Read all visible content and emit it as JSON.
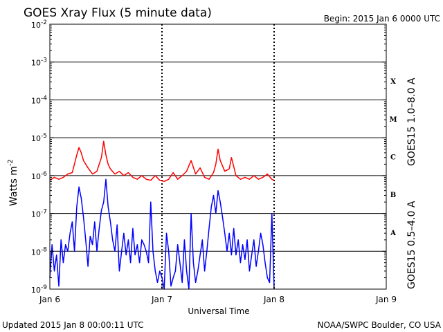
{
  "chart_data": {
    "type": "line",
    "title": "GOES Xray Flux (5 minute data)",
    "begin_label": "Begin:  2015 Jan 6 0000 UTC",
    "updated_label": "Updated 2015 Jan  8 00:00:11 UTC",
    "source_label": "NOAA/SWPC Boulder, CO USA",
    "xlabel": "Universal Time",
    "ylabel_base": "Watts m",
    "ylabel_exp": "-2",
    "yscale": "log",
    "ylim": [
      1e-09,
      0.01
    ],
    "xlim": [
      "Jan 6",
      "Jan 9"
    ],
    "grid": true,
    "x_ticks": [
      {
        "day": 0,
        "label": "Jan 6"
      },
      {
        "day": 1,
        "label": "Jan 7"
      },
      {
        "day": 2,
        "label": "Jan 8"
      },
      {
        "day": 3,
        "label": "Jan 9"
      }
    ],
    "y_ticks": [
      {
        "exp": -2,
        "base": "10",
        "sup": "-2"
      },
      {
        "exp": -3,
        "base": "10",
        "sup": "-3"
      },
      {
        "exp": -4,
        "base": "10",
        "sup": "-4"
      },
      {
        "exp": -5,
        "base": "10",
        "sup": "-5"
      },
      {
        "exp": -6,
        "base": "10",
        "sup": "-6"
      },
      {
        "exp": -7,
        "base": "10",
        "sup": "-7"
      },
      {
        "exp": -8,
        "base": "10",
        "sup": "-8"
      },
      {
        "exp": -9,
        "base": "10",
        "sup": "-9"
      }
    ],
    "flare_classes": [
      {
        "label": "X",
        "exp": -3.5
      },
      {
        "label": "M",
        "exp": -4.5
      },
      {
        "label": "C",
        "exp": -5.5
      },
      {
        "label": "B",
        "exp": -6.5
      },
      {
        "label": "A",
        "exp": -7.5
      }
    ],
    "series": [
      {
        "name": "GOES15 1.0–8.0 A",
        "color": "#ff0000",
        "x": [
          0,
          0.04,
          0.08,
          0.12,
          0.16,
          0.2,
          0.24,
          0.26,
          0.28,
          0.3,
          0.34,
          0.38,
          0.42,
          0.44,
          0.46,
          0.48,
          0.5,
          0.52,
          0.54,
          0.58,
          0.62,
          0.66,
          0.7,
          0.74,
          0.78,
          0.82,
          0.86,
          0.9,
          0.94,
          0.98,
          1.02,
          1.06,
          1.1,
          1.14,
          1.18,
          1.22,
          1.26,
          1.3,
          1.34,
          1.38,
          1.42,
          1.46,
          1.48,
          1.5,
          1.52,
          1.56,
          1.6,
          1.62,
          1.66,
          1.7,
          1.74,
          1.78,
          1.82,
          1.86,
          1.9,
          1.94,
          1.98,
          2.0
        ],
        "y": [
          7.5e-07,
          9e-07,
          8e-07,
          9e-07,
          1.1e-06,
          1.2e-06,
          3.5e-06,
          5.5e-06,
          4e-06,
          2.5e-06,
          1.6e-06,
          1.1e-06,
          1.3e-06,
          2e-06,
          3e-06,
          8e-06,
          3.5e-06,
          2e-06,
          1.5e-06,
          1.1e-06,
          1.3e-06,
          1e-06,
          1.2e-06,
          9e-07,
          8e-07,
          1e-06,
          8e-07,
          7.5e-07,
          1e-06,
          7.5e-07,
          7e-07,
          8e-07,
          1.2e-06,
          8e-07,
          1e-06,
          1.3e-06,
          2.5e-06,
          1.1e-06,
          1.6e-06,
          9e-07,
          8e-07,
          1.2e-06,
          2e-06,
          5e-06,
          2.5e-06,
          1.3e-06,
          1.5e-06,
          3e-06,
          1e-06,
          8e-07,
          9e-07,
          8e-07,
          1e-06,
          8e-07,
          9e-07,
          1.1e-06,
          8e-07,
          7.5e-07
        ]
      },
      {
        "name": "GOES15 0.5–4.0 A",
        "color": "#0000ff",
        "x": [
          0,
          0.02,
          0.04,
          0.06,
          0.08,
          0.1,
          0.12,
          0.14,
          0.16,
          0.18,
          0.2,
          0.22,
          0.24,
          0.26,
          0.28,
          0.3,
          0.32,
          0.34,
          0.36,
          0.38,
          0.4,
          0.42,
          0.44,
          0.46,
          0.48,
          0.5,
          0.52,
          0.54,
          0.56,
          0.58,
          0.6,
          0.62,
          0.64,
          0.66,
          0.68,
          0.7,
          0.72,
          0.74,
          0.76,
          0.78,
          0.8,
          0.82,
          0.84,
          0.86,
          0.88,
          0.9,
          0.92,
          0.94,
          0.96,
          0.98,
          1.0,
          1.02,
          1.04,
          1.06,
          1.08,
          1.1,
          1.12,
          1.14,
          1.16,
          1.18,
          1.2,
          1.22,
          1.24,
          1.26,
          1.28,
          1.3,
          1.32,
          1.34,
          1.36,
          1.38,
          1.4,
          1.42,
          1.44,
          1.46,
          1.48,
          1.5,
          1.52,
          1.54,
          1.56,
          1.58,
          1.6,
          1.62,
          1.64,
          1.66,
          1.68,
          1.7,
          1.72,
          1.74,
          1.76,
          1.78,
          1.8,
          1.82,
          1.84,
          1.86,
          1.88,
          1.9,
          1.92,
          1.94,
          1.96,
          1.98,
          2.0
        ],
        "y": [
          2e-09,
          1.5e-08,
          3e-09,
          8e-09,
          1.2e-09,
          2e-08,
          5e-09,
          1.5e-08,
          1e-08,
          3e-08,
          6e-08,
          1e-08,
          1.5e-07,
          5e-07,
          2.5e-07,
          8e-08,
          2e-08,
          4e-09,
          2.5e-08,
          1.5e-08,
          6e-08,
          1e-08,
          4e-08,
          1.2e-07,
          2e-07,
          8e-07,
          1.5e-07,
          6e-08,
          2e-08,
          1e-08,
          5e-08,
          3e-09,
          1e-08,
          3e-08,
          8e-09,
          2e-08,
          5e-09,
          4e-08,
          8e-09,
          1.5e-08,
          5e-09,
          2e-08,
          1.5e-08,
          1e-08,
          5e-09,
          2e-07,
          1e-08,
          3e-09,
          1.5e-09,
          3e-09,
          2e-09,
          1e-09,
          3e-08,
          1e-08,
          1.2e-09,
          2e-09,
          3e-09,
          1.5e-08,
          5e-09,
          1.5e-09,
          2e-08,
          3e-09,
          1e-09,
          1e-07,
          5e-09,
          1.5e-09,
          3e-09,
          8e-09,
          2e-08,
          3e-09,
          1e-08,
          4e-08,
          1.5e-07,
          3e-07,
          1e-07,
          4e-07,
          2e-07,
          8e-08,
          3e-08,
          1e-08,
          3e-08,
          8e-09,
          4e-08,
          8e-09,
          2e-08,
          5e-09,
          1.5e-08,
          6e-09,
          2e-08,
          3e-09,
          8e-09,
          2e-08,
          4e-09,
          1e-08,
          3e-08,
          1.5e-08,
          5e-09,
          2e-09,
          1.5e-09,
          1e-07,
          1e-09
        ]
      }
    ]
  }
}
